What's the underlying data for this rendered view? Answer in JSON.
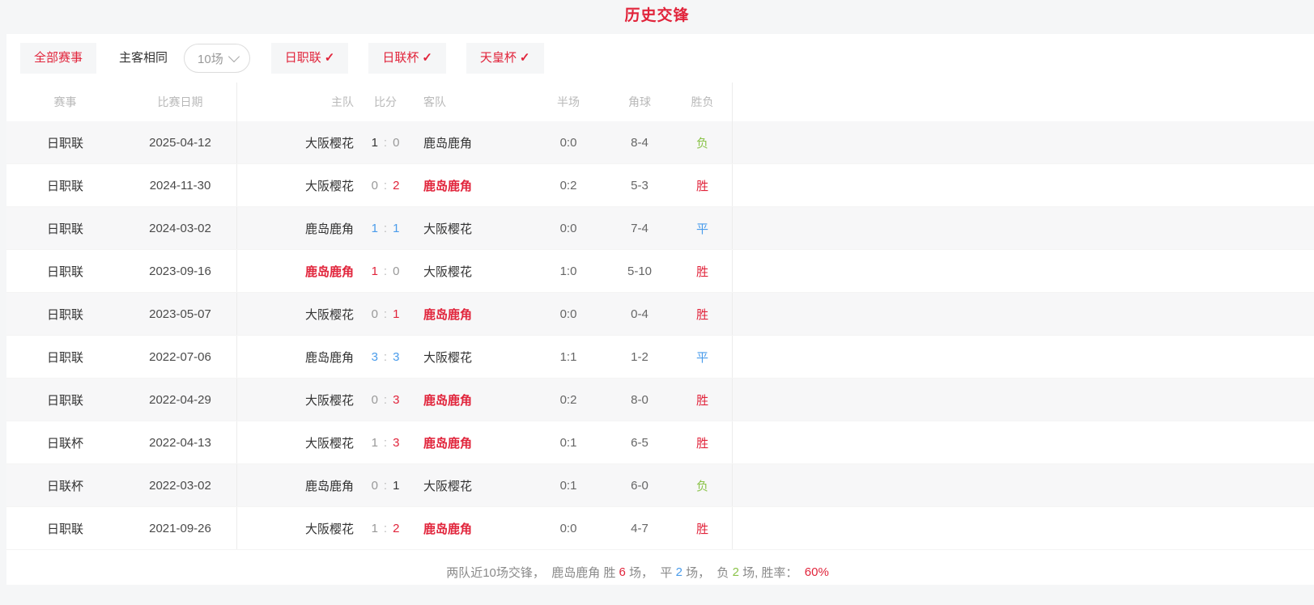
{
  "page": {
    "title": "历史交锋"
  },
  "colors": {
    "red": "#e1243b",
    "blue": "#4a9ceb",
    "green": "#8bc34a",
    "dark": "#333333",
    "muted": "#999999",
    "summary": "#8a8a8a"
  },
  "icons": {
    "check": "✓",
    "chevron_down": "chevron-down"
  },
  "filters": {
    "all_label": "全部赛事",
    "same_venue_label": "主客相同",
    "count_select_value": "10场",
    "leagues": [
      {
        "label": "日职联",
        "checked": true
      },
      {
        "label": "日联杯",
        "checked": true
      },
      {
        "label": "天皇杯",
        "checked": true
      }
    ]
  },
  "table": {
    "headers": [
      "赛事",
      "比赛日期",
      "主队",
      "比分",
      "客队",
      "半场",
      "角球",
      "胜负"
    ],
    "rows": [
      {
        "league": "日职联",
        "date": "2025-04-12",
        "home": "大阪樱花",
        "home_highlight": false,
        "score_home": "1",
        "score_home_color": "dark",
        "score_away": "0",
        "score_away_color": "muted",
        "away": "鹿岛鹿角",
        "away_highlight": false,
        "half": "0:0",
        "corners": "8-4",
        "result": "负",
        "result_color": "green"
      },
      {
        "league": "日职联",
        "date": "2024-11-30",
        "home": "大阪樱花",
        "home_highlight": false,
        "score_home": "0",
        "score_home_color": "muted",
        "score_away": "2",
        "score_away_color": "red",
        "away": "鹿岛鹿角",
        "away_highlight": true,
        "half": "0:2",
        "corners": "5-3",
        "result": "胜",
        "result_color": "red"
      },
      {
        "league": "日职联",
        "date": "2024-03-02",
        "home": "鹿岛鹿角",
        "home_highlight": false,
        "score_home": "1",
        "score_home_color": "blue",
        "score_away": "1",
        "score_away_color": "blue",
        "away": "大阪樱花",
        "away_highlight": false,
        "half": "0:0",
        "corners": "7-4",
        "result": "平",
        "result_color": "blue"
      },
      {
        "league": "日职联",
        "date": "2023-09-16",
        "home": "鹿岛鹿角",
        "home_highlight": true,
        "score_home": "1",
        "score_home_color": "red",
        "score_away": "0",
        "score_away_color": "muted",
        "away": "大阪樱花",
        "away_highlight": false,
        "half": "1:0",
        "corners": "5-10",
        "result": "胜",
        "result_color": "red"
      },
      {
        "league": "日职联",
        "date": "2023-05-07",
        "home": "大阪樱花",
        "home_highlight": false,
        "score_home": "0",
        "score_home_color": "muted",
        "score_away": "1",
        "score_away_color": "red",
        "away": "鹿岛鹿角",
        "away_highlight": true,
        "half": "0:0",
        "corners": "0-4",
        "result": "胜",
        "result_color": "red"
      },
      {
        "league": "日职联",
        "date": "2022-07-06",
        "home": "鹿岛鹿角",
        "home_highlight": false,
        "score_home": "3",
        "score_home_color": "blue",
        "score_away": "3",
        "score_away_color": "blue",
        "away": "大阪樱花",
        "away_highlight": false,
        "half": "1:1",
        "corners": "1-2",
        "result": "平",
        "result_color": "blue"
      },
      {
        "league": "日职联",
        "date": "2022-04-29",
        "home": "大阪樱花",
        "home_highlight": false,
        "score_home": "0",
        "score_home_color": "muted",
        "score_away": "3",
        "score_away_color": "red",
        "away": "鹿岛鹿角",
        "away_highlight": true,
        "half": "0:2",
        "corners": "8-0",
        "result": "胜",
        "result_color": "red"
      },
      {
        "league": "日联杯",
        "date": "2022-04-13",
        "home": "大阪樱花",
        "home_highlight": false,
        "score_home": "1",
        "score_home_color": "muted",
        "score_away": "3",
        "score_away_color": "red",
        "away": "鹿岛鹿角",
        "away_highlight": true,
        "half": "0:1",
        "corners": "6-5",
        "result": "胜",
        "result_color": "red"
      },
      {
        "league": "日联杯",
        "date": "2022-03-02",
        "home": "鹿岛鹿角",
        "home_highlight": false,
        "score_home": "0",
        "score_home_color": "muted",
        "score_away": "1",
        "score_away_color": "dark",
        "away": "大阪樱花",
        "away_highlight": false,
        "half": "0:1",
        "corners": "6-0",
        "result": "负",
        "result_color": "green"
      },
      {
        "league": "日职联",
        "date": "2021-09-26",
        "home": "大阪樱花",
        "home_highlight": false,
        "score_home": "1",
        "score_home_color": "muted",
        "score_away": "2",
        "score_away_color": "red",
        "away": "鹿岛鹿角",
        "away_highlight": true,
        "half": "0:0",
        "corners": "4-7",
        "result": "胜",
        "result_color": "red"
      }
    ]
  },
  "summary": {
    "segments": [
      {
        "text": "两队近10场交锋，  鹿岛鹿角 胜 ",
        "color": "summary"
      },
      {
        "text": "6",
        "color": "red"
      },
      {
        "text": " 场，  平 ",
        "color": "summary"
      },
      {
        "text": "2",
        "color": "blue"
      },
      {
        "text": " 场，  负 ",
        "color": "summary"
      },
      {
        "text": "2",
        "color": "green"
      },
      {
        "text": " 场, 胜率：  ",
        "color": "summary"
      },
      {
        "text": "60%",
        "color": "red"
      }
    ]
  }
}
